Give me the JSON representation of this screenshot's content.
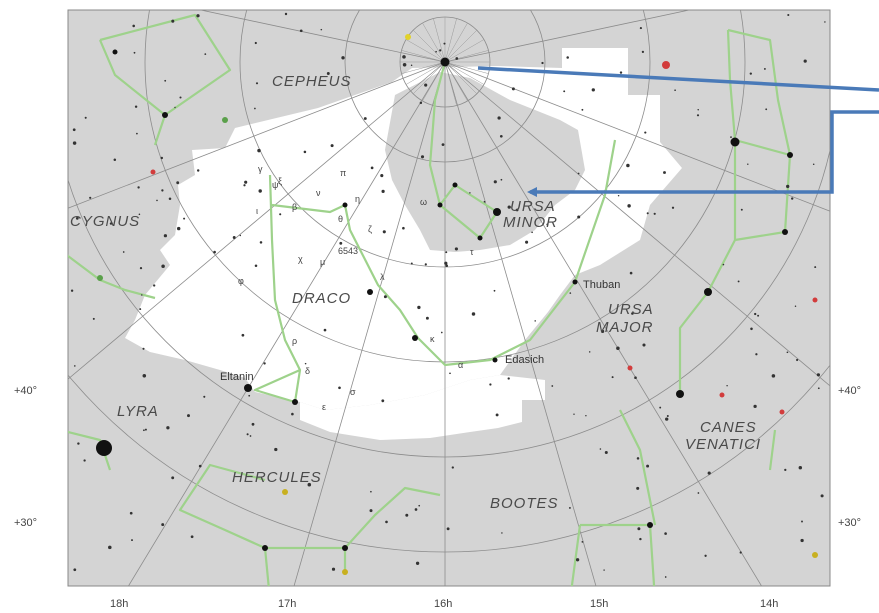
{
  "chart_data": {
    "type": "star-chart",
    "constellations": [
      {
        "name": "CEPHEUS"
      },
      {
        "name": "CYGNUS"
      },
      {
        "name": "URSA MINOR",
        "lines": [
          "URSA",
          "MINOR"
        ]
      },
      {
        "name": "DRACO"
      },
      {
        "name": "URSA MAJOR",
        "lines": [
          "URSA",
          "MAJOR"
        ]
      },
      {
        "name": "LYRA"
      },
      {
        "name": "CANES VENATICI",
        "lines": [
          "CANES",
          "VENATICI"
        ]
      },
      {
        "name": "HERCULES"
      },
      {
        "name": "BOOTES"
      }
    ],
    "star_labels": [
      "Thuban",
      "Edasich",
      "Eltanin"
    ],
    "greek_labels": [
      "γ",
      "ξ",
      "ν",
      "β",
      "ι",
      "θ",
      "η",
      "ζ",
      "δ",
      "ε",
      "χ",
      "φ",
      "λ",
      "κ",
      "α",
      "ψ",
      "σ",
      "τ",
      "ω",
      "π",
      "ρ",
      "μ"
    ],
    "other_labels": [
      "6543"
    ],
    "dec_ticks_left": [
      "+40°",
      "+30°"
    ],
    "dec_ticks_right": [
      "+40°",
      "+30°"
    ],
    "ra_ticks": [
      "18h",
      "17h",
      "16h",
      "15h",
      "14h"
    ],
    "colors": {
      "background": "#d4d4d4",
      "highlight_region": "#ffffff",
      "constellation_lines": "#9ed28b",
      "grid": "#8c8c8c",
      "arrow": "#4a7ab8"
    }
  }
}
